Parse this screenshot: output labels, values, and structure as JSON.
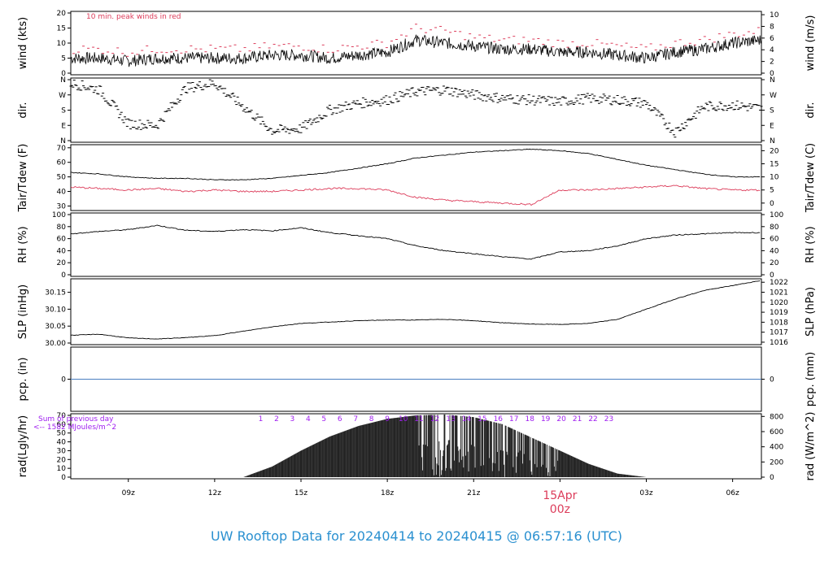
{
  "title": "UW Rooftop Data for 20240414  to  20240415 @ 06:57:16  (UTC)",
  "colors": {
    "title": "#2a90d0",
    "peak": "#dc3c5a",
    "dew": "#dc3c5a",
    "precip": "#4a7fc0",
    "solar_ann": "#a020f0"
  },
  "x_axis": {
    "ticks": [
      "09z",
      "12z",
      "15z",
      "18z",
      "21z",
      "15Apr",
      "03z",
      "06z"
    ],
    "date_label": "15Apr",
    "date_sub": "00z"
  },
  "chart_data": [
    {
      "type": "line",
      "panel": "wind",
      "ylabel_left": "wind (kts)",
      "ylabel_right": "wind (m/s)",
      "left_ticks": [
        "0",
        "5",
        "10",
        "15",
        "20"
      ],
      "right_ticks": [
        "0",
        "2",
        "4",
        "6",
        "8",
        "10"
      ],
      "ylim": [
        0,
        20
      ],
      "annotation": "10 min. peak winds in red",
      "x_hours": [
        7,
        8,
        9,
        10,
        11,
        12,
        13,
        14,
        15,
        16,
        17,
        18,
        19,
        20,
        21,
        22,
        23,
        24,
        25,
        26,
        27,
        28,
        29,
        30,
        31
      ],
      "series": [
        {
          "values": [
            5,
            5,
            4,
            5,
            5,
            5,
            5,
            6,
            6,
            5,
            6,
            7,
            11,
            10,
            9,
            8,
            8,
            7,
            7,
            6,
            5,
            7,
            8,
            10,
            11
          ]
        },
        {
          "values": [
            8,
            8,
            7,
            8,
            8,
            8,
            8,
            9,
            9,
            8,
            9,
            10,
            15,
            14,
            12,
            11,
            11,
            10,
            10,
            9,
            8,
            10,
            11,
            13,
            14
          ]
        }
      ]
    },
    {
      "type": "scatter",
      "panel": "dir",
      "ylabel_left": "dir.",
      "ylabel_right": "dir.",
      "left_ticks": [
        "N",
        "E",
        "S",
        "W",
        "N"
      ],
      "right_ticks": [
        "N",
        "E",
        "S",
        "W",
        "N"
      ],
      "ylim": [
        0,
        360
      ],
      "x_hours": [
        7,
        8,
        9,
        10,
        11,
        12,
        13,
        14,
        15,
        16,
        17,
        18,
        19,
        20,
        21,
        22,
        23,
        24,
        25,
        26,
        27,
        28,
        29,
        30,
        31
      ],
      "values": [
        340,
        300,
        100,
        90,
        310,
        340,
        200,
        60,
        70,
        180,
        220,
        240,
        290,
        300,
        270,
        250,
        240,
        230,
        250,
        240,
        220,
        50,
        200,
        210,
        190
      ]
    },
    {
      "type": "line",
      "panel": "temp",
      "ylabel_left": "Tair/Tdew (F)",
      "ylabel_right": "Tair/Tdew (C)",
      "left_ticks": [
        "30",
        "40",
        "50",
        "60",
        "70"
      ],
      "right_ticks": [
        "0",
        "5",
        "10",
        "15",
        "20"
      ],
      "ylim": [
        28,
        71
      ],
      "x_hours": [
        7,
        8,
        9,
        10,
        11,
        12,
        13,
        14,
        15,
        16,
        17,
        18,
        19,
        20,
        21,
        22,
        23,
        24,
        25,
        26,
        27,
        28,
        29,
        30,
        31
      ],
      "series": [
        {
          "values": [
            53,
            52,
            50,
            49,
            49,
            48,
            48,
            49,
            51,
            53,
            56,
            59,
            63,
            65,
            67,
            68,
            69,
            68,
            66,
            62,
            58,
            55,
            52,
            50,
            50
          ]
        },
        {
          "values": [
            43,
            42,
            41,
            42,
            40,
            41,
            40,
            40,
            41,
            42,
            42,
            41,
            36,
            34,
            33,
            32,
            31,
            41,
            41,
            42,
            43,
            44,
            42,
            41,
            41
          ]
        }
      ]
    },
    {
      "type": "line",
      "panel": "rh",
      "ylabel_left": "RH (%)",
      "ylabel_right": "RH (%)",
      "left_ticks": [
        "0",
        "20",
        "40",
        "60",
        "80",
        "100"
      ],
      "right_ticks": [
        "0",
        "20",
        "40",
        "60",
        "80",
        "100"
      ],
      "ylim": [
        0,
        100
      ],
      "x_hours": [
        7,
        8,
        9,
        10,
        11,
        12,
        13,
        14,
        15,
        16,
        17,
        18,
        19,
        20,
        21,
        22,
        23,
        24,
        25,
        26,
        27,
        28,
        29,
        30,
        31
      ],
      "series": [
        {
          "values": [
            68,
            72,
            75,
            82,
            74,
            72,
            75,
            73,
            78,
            70,
            65,
            60,
            48,
            40,
            35,
            30,
            26,
            38,
            40,
            48,
            60,
            66,
            68,
            70,
            70
          ]
        }
      ]
    },
    {
      "type": "line",
      "panel": "slp",
      "ylabel_left": "SLP (inHg)",
      "ylabel_right": "SLP (hPa)",
      "left_ticks": [
        "30.00",
        "30.05",
        "30.10",
        "30.15"
      ],
      "right_ticks": [
        "1016",
        "1017",
        "1018",
        "1019",
        "1020",
        "1021",
        "1022"
      ],
      "ylim": [
        30.0,
        30.185
      ],
      "x_hours": [
        7,
        8,
        9,
        10,
        11,
        12,
        13,
        14,
        15,
        16,
        17,
        18,
        19,
        20,
        21,
        22,
        23,
        24,
        25,
        26,
        27,
        28,
        29,
        30,
        31
      ],
      "series": [
        {
          "values": [
            30.023,
            30.026,
            30.015,
            30.012,
            30.016,
            30.022,
            30.035,
            30.048,
            30.058,
            30.062,
            30.066,
            30.068,
            30.068,
            30.07,
            30.066,
            30.06,
            30.056,
            30.055,
            30.058,
            30.07,
            30.1,
            30.13,
            30.155,
            30.17,
            30.185
          ]
        }
      ]
    },
    {
      "type": "line",
      "panel": "pcp",
      "ylabel_left": "pcp. (in)",
      "ylabel_right": "pcp. (mm)",
      "left_ticks": [
        "0"
      ],
      "right_ticks": [
        "0"
      ],
      "ylim": [
        0,
        1
      ],
      "x_hours": [
        7,
        31
      ],
      "series": [
        {
          "values": [
            0,
            0
          ]
        }
      ]
    },
    {
      "type": "area",
      "panel": "rad",
      "ylabel_left": "rad(Lgly/hr)",
      "ylabel_right": "rad (W/m^2)",
      "left_ticks": [
        "0",
        "10",
        "20",
        "30",
        "40",
        "50",
        "60",
        "70"
      ],
      "right_ticks": [
        "0",
        "200",
        "400",
        "600",
        "800"
      ],
      "ylim": [
        0,
        70
      ],
      "annotation_1": "Sum of previous day",
      "annotation_2": "<-- 1582 MJoules/m^2",
      "hour_marks": [
        "1",
        "2",
        "3",
        "4",
        "5",
        "6",
        "7",
        "8",
        "9",
        "10",
        "11",
        "12",
        "13",
        "14",
        "15",
        "16",
        "17",
        "18",
        "19",
        "20",
        "21",
        "22",
        "23"
      ],
      "x_hours": [
        13,
        14,
        15,
        16,
        17,
        18,
        19,
        20,
        21,
        22,
        23,
        24,
        25,
        26,
        27
      ],
      "values": [
        0,
        12,
        30,
        46,
        58,
        66,
        70,
        71,
        68,
        60,
        45,
        30,
        15,
        4,
        0
      ]
    }
  ]
}
